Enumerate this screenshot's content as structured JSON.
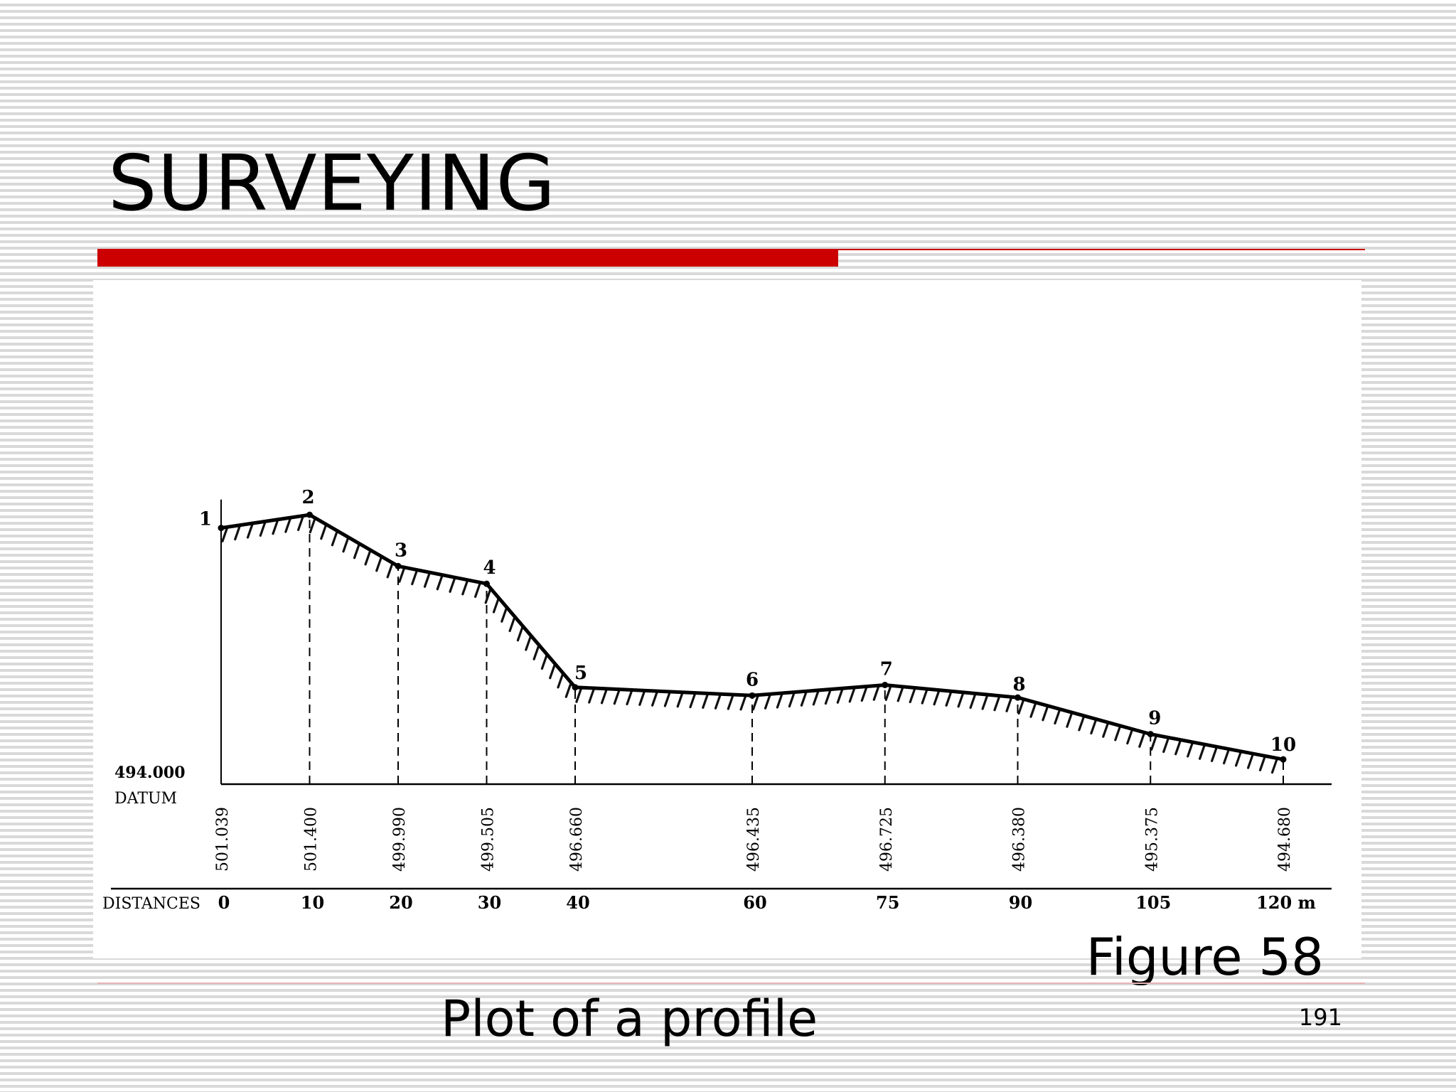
{
  "slide": {
    "title": "SURVEYING",
    "figure_number": "Figure 58",
    "caption": "Plot of a profile",
    "page_number": "191"
  },
  "profile": {
    "datum_elevation": "494.000",
    "datum_label": "DATUM",
    "distances_label": "DISTANCES",
    "distance_unit": "m",
    "points": [
      {
        "label": "1",
        "distance": 0,
        "distance_label": "0",
        "elevation": 501.039,
        "elevation_label": "501.039"
      },
      {
        "label": "2",
        "distance": 10,
        "distance_label": "10",
        "elevation": 501.4,
        "elevation_label": "501.400"
      },
      {
        "label": "3",
        "distance": 20,
        "distance_label": "20",
        "elevation": 499.99,
        "elevation_label": "499.990"
      },
      {
        "label": "4",
        "distance": 30,
        "distance_label": "30",
        "elevation": 499.505,
        "elevation_label": "499.505"
      },
      {
        "label": "5",
        "distance": 40,
        "distance_label": "40",
        "elevation": 496.66,
        "elevation_label": "496.660"
      },
      {
        "label": "6",
        "distance": 60,
        "distance_label": "60",
        "elevation": 496.435,
        "elevation_label": "496.435"
      },
      {
        "label": "7",
        "distance": 75,
        "distance_label": "75",
        "elevation": 496.725,
        "elevation_label": "496.725"
      },
      {
        "label": "8",
        "distance": 90,
        "distance_label": "90",
        "elevation": 496.38,
        "elevation_label": "496.380"
      },
      {
        "label": "9",
        "distance": 105,
        "distance_label": "105",
        "elevation": 495.375,
        "elevation_label": "495.375"
      },
      {
        "label": "10",
        "distance": 120,
        "distance_label": "120 m",
        "elevation": 494.68,
        "elevation_label": "494.680"
      }
    ]
  }
}
